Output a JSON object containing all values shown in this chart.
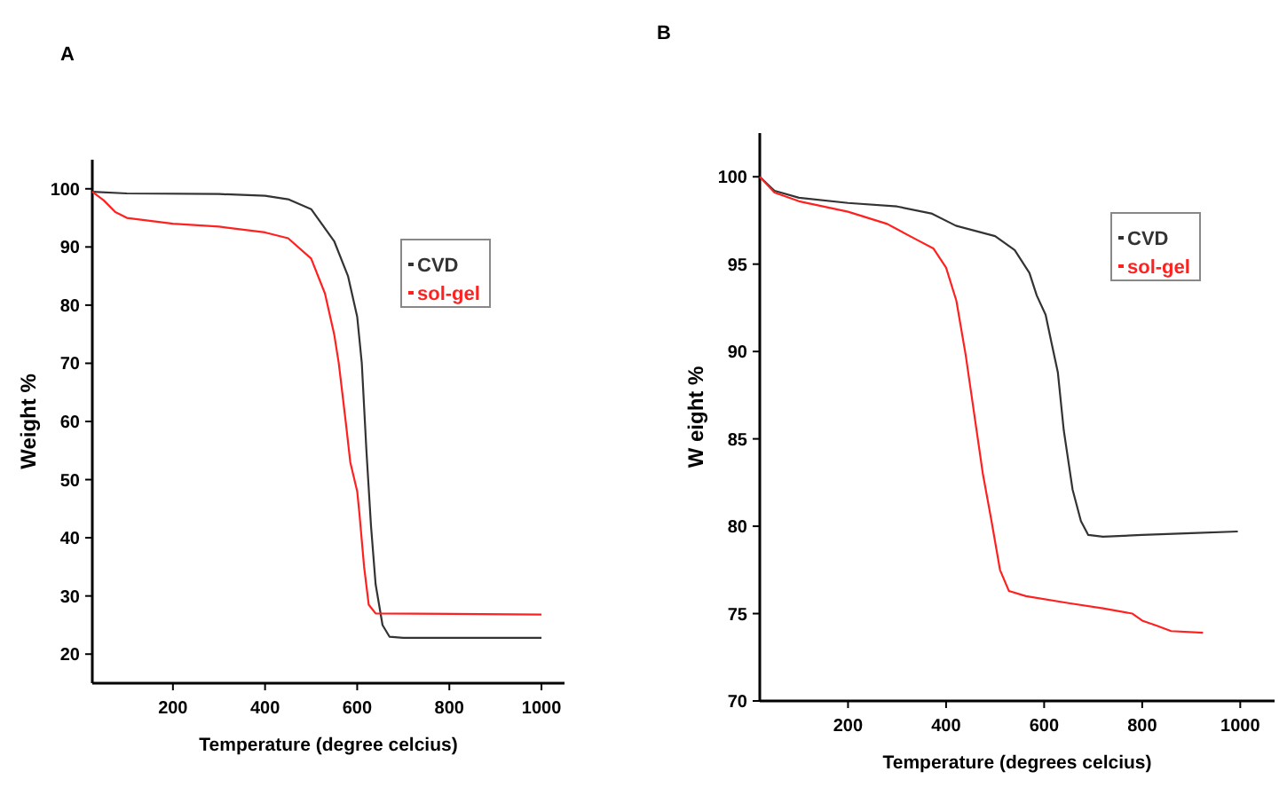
{
  "chart_data": [
    {
      "type": "line",
      "title": "A",
      "xlabel": "Temperature (degree celcius)",
      "ylabel": "Weight %",
      "xlim": [
        25,
        1050
      ],
      "xticks": [
        200,
        400,
        600,
        800,
        1000
      ],
      "ylim": [
        15,
        105
      ],
      "yticks": [
        20,
        30,
        40,
        50,
        60,
        70,
        80,
        90,
        100
      ],
      "legend": "top right",
      "grid": false,
      "marker": "none",
      "line_style": "solid",
      "series": [
        {
          "name": "CVD",
          "color": "#333333",
          "x": [
            25,
            100,
            300,
            400,
            450,
            500,
            550,
            580,
            600,
            610,
            620,
            630,
            640,
            655,
            670,
            700,
            1000
          ],
          "values": [
            99.5,
            99.2,
            99.1,
            98.8,
            98.2,
            96.5,
            91,
            85,
            78,
            70,
            55,
            42,
            32,
            25,
            23,
            22.8,
            22.8
          ]
        },
        {
          "name": "sol-gel",
          "color": "#ff2020",
          "x": [
            25,
            50,
            75,
            100,
            200,
            300,
            400,
            450,
            500,
            530,
            550,
            560,
            575,
            585,
            600,
            605,
            615,
            625,
            640,
            1000
          ],
          "values": [
            99.5,
            98,
            96,
            95,
            94,
            93.5,
            92.5,
            91.5,
            88,
            82,
            75,
            70,
            60,
            53,
            48,
            44,
            35,
            28.5,
            27,
            26.8
          ]
        }
      ]
    },
    {
      "type": "line",
      "title": "B",
      "xlabel": "Temperature (degrees celcius)",
      "ylabel": "W eight %",
      "xlim": [
        20,
        1070
      ],
      "xticks": [
        200,
        400,
        600,
        800,
        1000
      ],
      "ylim": [
        70,
        102.5
      ],
      "yticks": [
        70,
        75,
        80,
        85,
        90,
        95,
        100
      ],
      "legend": "top right",
      "grid": false,
      "marker": "none",
      "line_style": "solid",
      "series": [
        {
          "name": "CVD",
          "color": "#333333",
          "x": [
            20,
            50,
            100,
            200,
            300,
            370,
            420,
            500,
            540,
            570,
            585,
            603,
            615,
            628,
            640,
            658,
            675,
            690,
            720,
            800,
            900,
            995
          ],
          "values": [
            100,
            99.2,
            98.8,
            98.5,
            98.3,
            97.9,
            97.2,
            96.6,
            95.8,
            94.5,
            93.2,
            92.1,
            90.5,
            88.8,
            85.5,
            82.1,
            80.3,
            79.5,
            79.4,
            79.5,
            79.6,
            79.7
          ]
        },
        {
          "name": "sol-gel",
          "color": "#ff2020",
          "x": [
            20,
            50,
            100,
            200,
            280,
            340,
            374,
            400,
            421,
            440,
            457,
            475,
            492,
            510,
            528,
            563,
            650,
            720,
            780,
            800,
            830,
            859,
            924
          ],
          "values": [
            100,
            99.1,
            98.6,
            98,
            97.3,
            96.4,
            95.9,
            94.8,
            92.9,
            89.8,
            86.5,
            83,
            80.4,
            77.5,
            76.3,
            76,
            75.6,
            75.3,
            75,
            74.6,
            74.3,
            74,
            73.9
          ]
        }
      ]
    }
  ]
}
